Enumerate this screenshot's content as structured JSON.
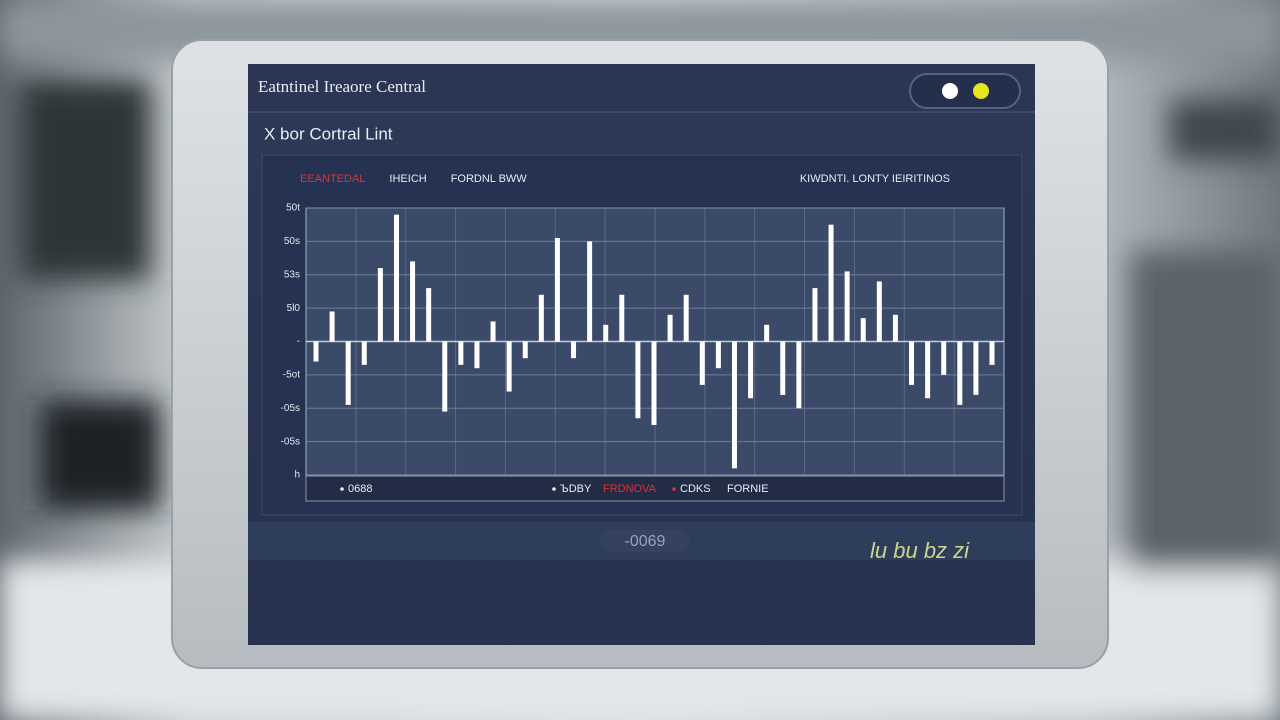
{
  "header": {
    "title": "Eatntinel Ireaore Central",
    "subtitle": "X bor Cortral Lint"
  },
  "chart_data": {
    "type": "bar",
    "legend_top": [
      {
        "text": "EEANTEDAL",
        "color": "#d8323c"
      },
      {
        "text": "IHEICH",
        "color": "#e6ecf5"
      },
      {
        "text": "FORDNL BWW",
        "color": "#e6ecf5"
      }
    ],
    "legend_top_right": "KIWDNTI. LONTY IEIRITINOS",
    "legend_bottom": [
      {
        "text": "0688",
        "color": "#e6ecf5"
      },
      {
        "text": "ЪDBY",
        "color": "#e6ecf5"
      },
      {
        "text": "FRDNOVA",
        "color": "#d8323c"
      },
      {
        "text": "CDKS",
        "color": "#e6ecf5"
      },
      {
        "text": "FORNIE",
        "color": "#e6ecf5"
      }
    ],
    "values": [
      -0.6,
      0.9,
      -1.9,
      -0.7,
      2.2,
      3.8,
      2.4,
      1.6,
      -2.1,
      -0.7,
      -0.8,
      0.6,
      -1.5,
      -0.5,
      1.4,
      3.1,
      -0.5,
      3.0,
      0.5,
      1.4,
      -2.3,
      -2.5,
      0.8,
      1.4,
      -1.3,
      -0.8,
      -3.8,
      -1.7,
      0.5,
      -1.6,
      -2.0,
      1.6,
      3.5,
      2.1,
      0.7,
      1.8,
      0.8,
      -1.3,
      -1.7,
      -1.0,
      -1.9,
      -1.6,
      -0.7
    ],
    "color": "#ffffff",
    "ylim": [
      -4,
      4
    ],
    "yticks": [
      {
        "value": 4,
        "label": "50t"
      },
      {
        "value": 3,
        "label": "50s"
      },
      {
        "value": 2,
        "label": "53s"
      },
      {
        "value": 1,
        "label": "5l0"
      },
      {
        "value": 0,
        "label": "-"
      },
      {
        "value": -1,
        "label": "-5ot"
      },
      {
        "value": -2,
        "label": "-05s"
      },
      {
        "value": -3,
        "label": "-05s"
      },
      {
        "value": -4,
        "label": "h"
      }
    ],
    "grid": true
  },
  "footer": {
    "button": "-0069",
    "ticker": "lu bu bz zi"
  }
}
